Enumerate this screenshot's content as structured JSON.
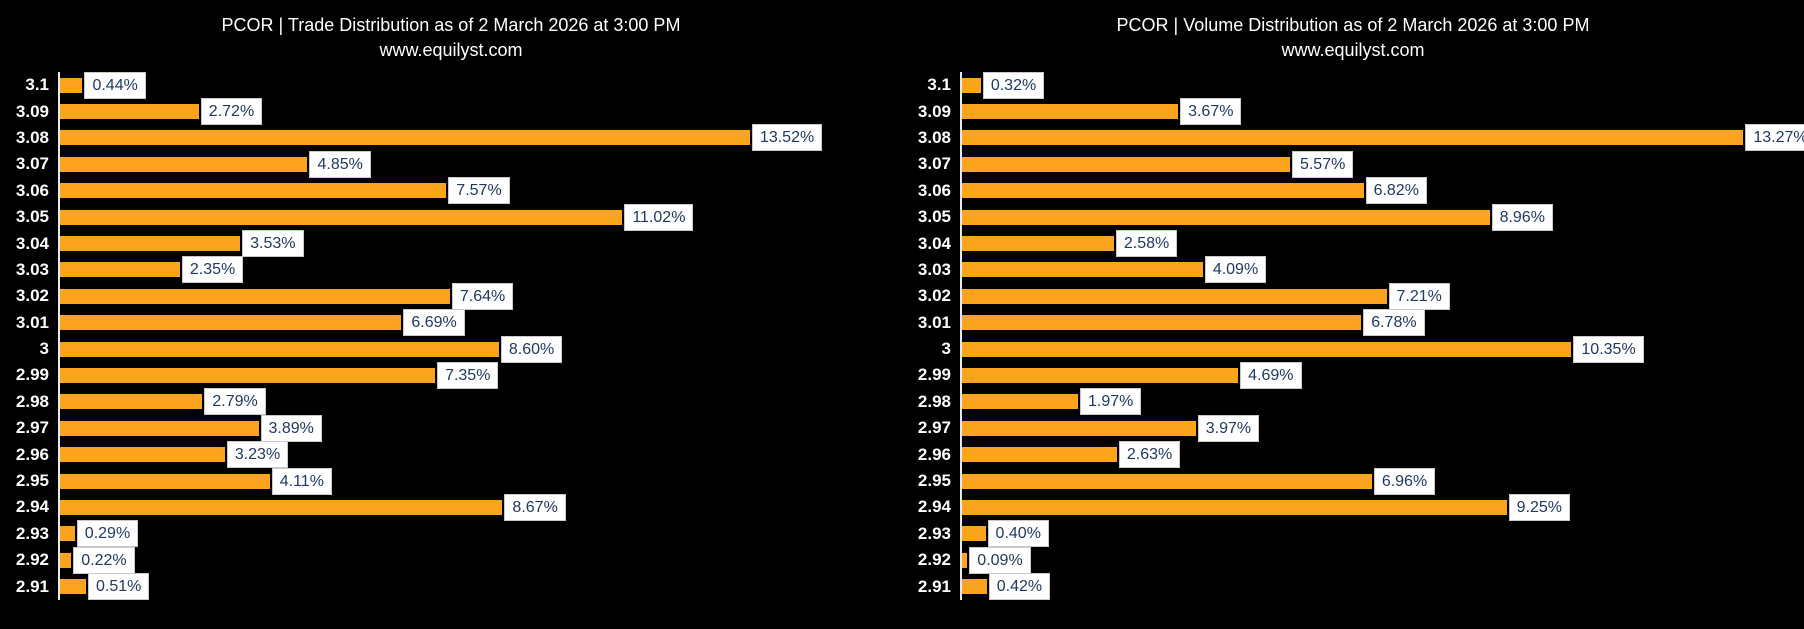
{
  "page": {
    "background": "#000000"
  },
  "colors": {
    "bar": "#FCA41D",
    "label_text": "#1F3864",
    "label_bg": "#FFFFFF",
    "label_border": "#C9C9C9",
    "axis_line": "#E8E8E8",
    "title_text": "#FFFFFF",
    "tick_text": "#FFFFFF"
  },
  "chart_data": [
    {
      "type": "bar",
      "orientation": "horizontal",
      "title": "PCOR | Trade Distribution as of 2 March 2026 at 3:00 PM",
      "subtitle": "www.equilyst.com",
      "categories": [
        "3.1",
        "3.09",
        "3.08",
        "3.07",
        "3.06",
        "3.05",
        "3.04",
        "3.03",
        "3.02",
        "3.01",
        "3",
        "2.99",
        "2.98",
        "2.97",
        "2.96",
        "2.95",
        "2.94",
        "2.93",
        "2.92",
        "2.91"
      ],
      "values": [
        0.44,
        2.72,
        13.52,
        4.85,
        7.57,
        11.02,
        3.53,
        2.35,
        7.64,
        6.69,
        8.6,
        7.35,
        2.79,
        3.89,
        3.23,
        4.11,
        8.67,
        0.29,
        0.22,
        0.51
      ],
      "value_suffix": "%",
      "xlabel": "",
      "ylabel": "",
      "xlim": [
        0,
        16.5
      ],
      "grid": false,
      "legend": false,
      "data_labels": true
    },
    {
      "type": "bar",
      "orientation": "horizontal",
      "title": "PCOR | Volume Distribution as of 2 March 2026 at 3:00 PM",
      "subtitle": "www.equilyst.com",
      "categories": [
        "3.1",
        "3.09",
        "3.08",
        "3.07",
        "3.06",
        "3.05",
        "3.04",
        "3.03",
        "3.02",
        "3.01",
        "3",
        "2.99",
        "2.98",
        "2.97",
        "2.96",
        "2.95",
        "2.94",
        "2.93",
        "2.92",
        "2.91"
      ],
      "values": [
        0.32,
        3.67,
        13.27,
        5.57,
        6.82,
        8.96,
        2.58,
        4.09,
        7.21,
        6.78,
        10.35,
        4.69,
        1.97,
        3.97,
        2.63,
        6.96,
        9.25,
        0.4,
        0.09,
        0.42
      ],
      "value_suffix": "%",
      "xlabel": "",
      "ylabel": "",
      "xlim": [
        0,
        14.3
      ],
      "grid": false,
      "legend": false,
      "data_labels": true
    }
  ]
}
